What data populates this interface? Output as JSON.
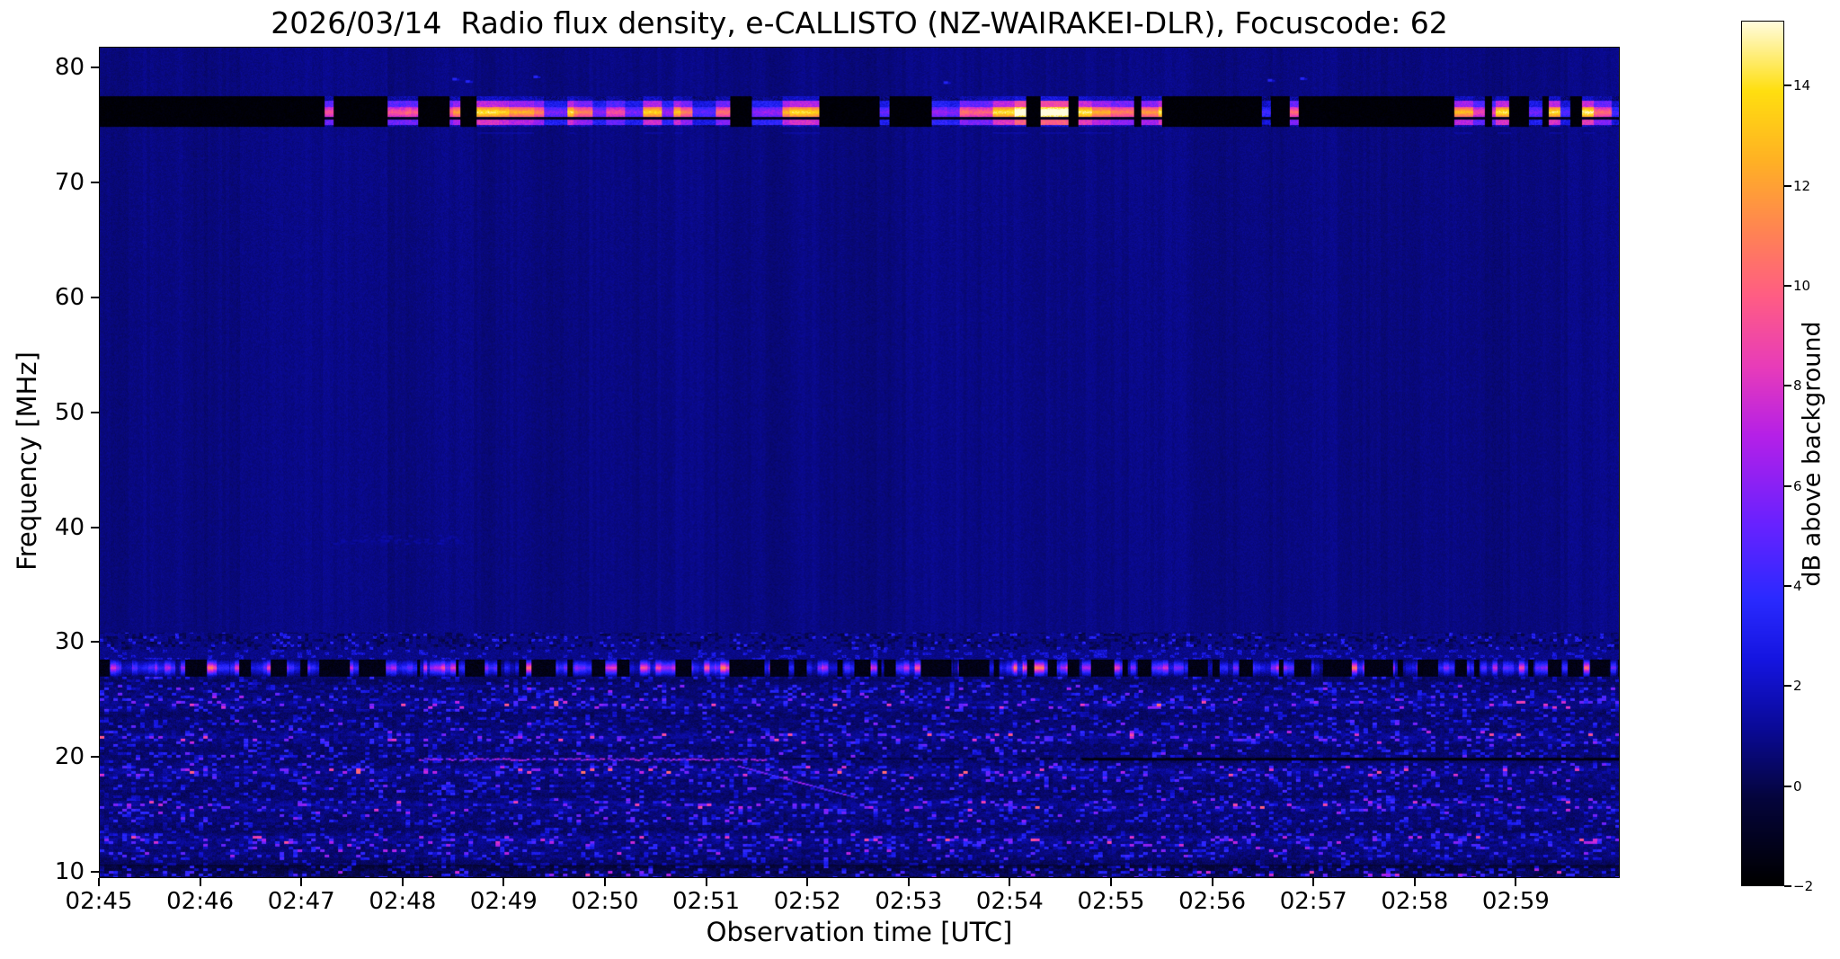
{
  "chart_data": {
    "type": "heatmap",
    "subtype": "radio-spectrogram",
    "title": "2026/03/14  Radio flux density, e-CALLISTO (NZ-WAIRAKEI-DLR), Focuscode: 62",
    "xlabel": "Observation time [UTC]",
    "ylabel": "Frequency [MHz]",
    "x_ticks": [
      "02:45",
      "02:46",
      "02:47",
      "02:48",
      "02:49",
      "02:50",
      "02:51",
      "02:52",
      "02:53",
      "02:54",
      "02:55",
      "02:56",
      "02:57",
      "02:58",
      "02:59"
    ],
    "x_range_minutes": [
      0,
      15
    ],
    "y_ticks": [
      "10",
      "20",
      "30",
      "40",
      "50",
      "60",
      "70",
      "80"
    ],
    "y_range_mhz": [
      9.7,
      81.8
    ],
    "colorbar": {
      "label": "dB above background",
      "tick_values": [
        -2,
        0,
        2,
        4,
        6,
        8,
        10,
        12,
        14
      ],
      "tick_labels": [
        "−2",
        "0",
        "2",
        "4",
        "6",
        "8",
        "10",
        "12",
        "14"
      ],
      "range": [
        -2,
        15.3
      ],
      "colormap_stops": [
        [
          0,
          "#000000"
        ],
        [
          0.1,
          "#05053c"
        ],
        [
          0.18,
          "#0a0a96"
        ],
        [
          0.26,
          "#1515e0"
        ],
        [
          0.33,
          "#2a2aff"
        ],
        [
          0.42,
          "#6a22ff"
        ],
        [
          0.52,
          "#b520e8"
        ],
        [
          0.6,
          "#e83cba"
        ],
        [
          0.68,
          "#ff5c86"
        ],
        [
          0.76,
          "#ff8552"
        ],
        [
          0.84,
          "#ffb224"
        ],
        [
          0.92,
          "#ffdf10"
        ],
        [
          1,
          "#fffcdc"
        ]
      ]
    },
    "seed": 1337,
    "features": {
      "background_db": 0.8,
      "quiet_band_mhz": [
        31,
        75
      ],
      "noise_floor_mhz": [
        10,
        30
      ],
      "rfi_band": {
        "freq_range_mhz": [
          74.95,
          77.55
        ],
        "bright_line_mhz": 76.2,
        "activity": [
          [
            0,
            2.72,
            0.02
          ],
          [
            2.72,
            3.7,
            0.5
          ],
          [
            3.7,
            6.2,
            0.85
          ],
          [
            6.2,
            7.1,
            0.35
          ],
          [
            7.1,
            8.2,
            0.05
          ],
          [
            8.2,
            9.5,
            0.8
          ],
          [
            9.5,
            10.6,
            0.45
          ],
          [
            10.6,
            11.3,
            0.12
          ],
          [
            11.3,
            12.2,
            0.4
          ],
          [
            12.2,
            13.3,
            0.1
          ],
          [
            13.3,
            15,
            0.6
          ]
        ],
        "white_hot_t": [
          8.9,
          9.6
        ]
      },
      "ionosonde_band_mhz": [
        27.15,
        28.65
      ],
      "dark_band_mhz": [
        29.45,
        30.95
      ],
      "lines": {
        "bright_20mhz": {
          "freq": 20.0,
          "t": [
            3.15,
            6.6
          ],
          "db": 6
        },
        "dark_20mhz": {
          "freq": 20.0,
          "t": [
            9.7,
            15
          ],
          "db": -1.6
        },
        "diagonal": {
          "t": [
            6.3,
            7.45
          ],
          "freq_from": 19.4,
          "freq_to": 16.7,
          "db": 5
        }
      },
      "blue_specks": [
        {
          "t": 3.5,
          "f": 79.1
        },
        {
          "t": 3.63,
          "f": 78.9
        },
        {
          "t": 4.3,
          "f": 79.3
        },
        {
          "t": 8.35,
          "f": 78.8
        },
        {
          "t": 11.55,
          "f": 79.0
        },
        {
          "t": 11.87,
          "f": 79.15
        }
      ],
      "smudge": {
        "t": [
          2.3,
          3.6
        ],
        "f": [
          38.7,
          39.5
        ],
        "db": 1.7
      }
    }
  }
}
